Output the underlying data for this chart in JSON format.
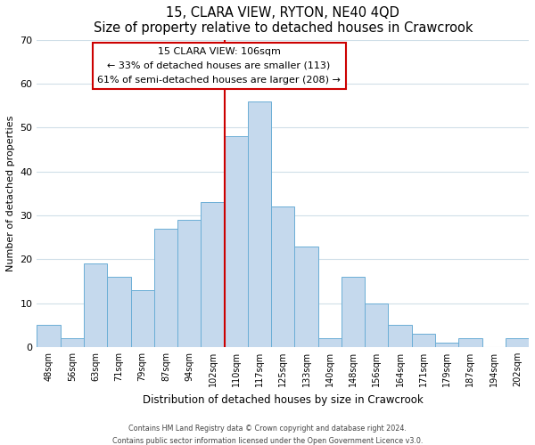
{
  "title": "15, CLARA VIEW, RYTON, NE40 4QD",
  "subtitle": "Size of property relative to detached houses in Crawcrook",
  "xlabel": "Distribution of detached houses by size in Crawcrook",
  "ylabel": "Number of detached properties",
  "footer_line1": "Contains HM Land Registry data © Crown copyright and database right 2024.",
  "footer_line2": "Contains public sector information licensed under the Open Government Licence v3.0.",
  "annotation_line1": "15 CLARA VIEW: 106sqm",
  "annotation_line2": "← 33% of detached houses are smaller (113)",
  "annotation_line3": "61% of semi-detached houses are larger (208) →",
  "bar_labels": [
    "48sqm",
    "56sqm",
    "63sqm",
    "71sqm",
    "79sqm",
    "87sqm",
    "94sqm",
    "102sqm",
    "110sqm",
    "117sqm",
    "125sqm",
    "133sqm",
    "140sqm",
    "148sqm",
    "156sqm",
    "164sqm",
    "171sqm",
    "179sqm",
    "187sqm",
    "194sqm",
    "202sqm"
  ],
  "bar_values": [
    5,
    2,
    19,
    16,
    13,
    27,
    29,
    33,
    48,
    56,
    32,
    23,
    2,
    16,
    10,
    5,
    3,
    1,
    2,
    0,
    2
  ],
  "bar_color": "#c5d9ed",
  "bar_edge_color": "#6baed6",
  "vline_color": "#cc0000",
  "ylim": [
    0,
    70
  ],
  "yticks": [
    0,
    10,
    20,
    30,
    40,
    50,
    60,
    70
  ],
  "annotation_box_edge_color": "#cc0000",
  "annotation_box_face_color": "#ffffff",
  "grid_color": "#d0dfe8",
  "background_color": "#f0f4f8"
}
